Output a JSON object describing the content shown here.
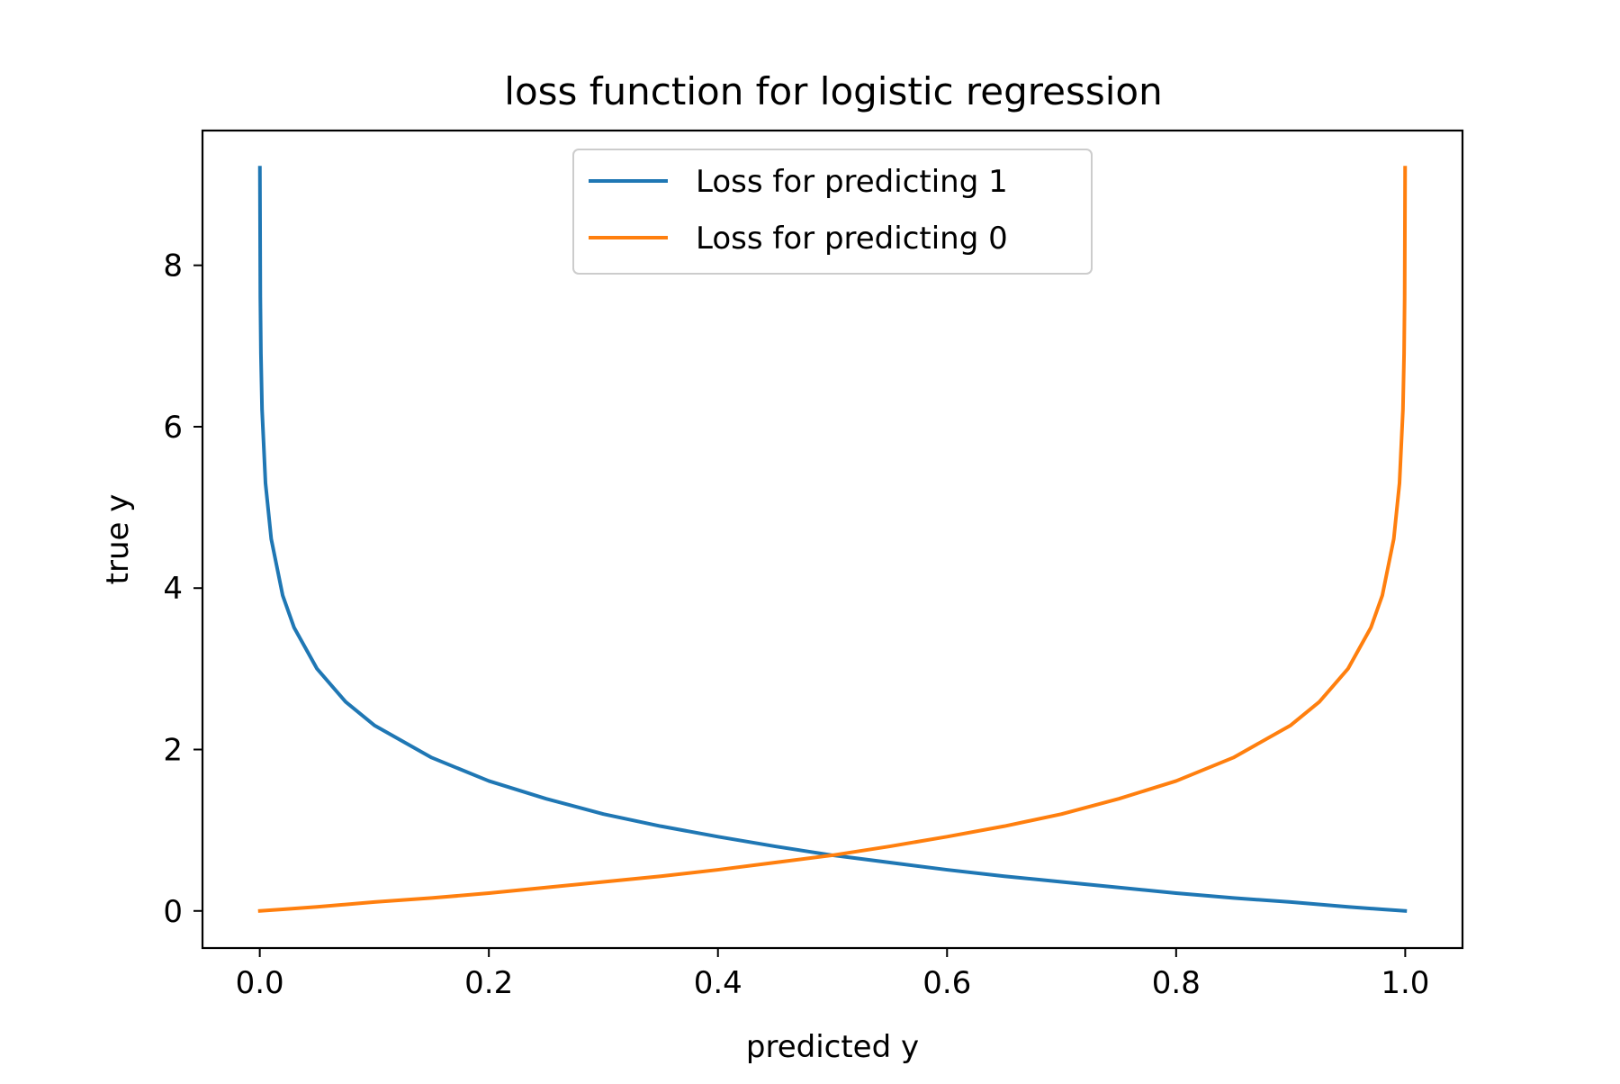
{
  "chart_data": {
    "type": "line",
    "title": "loss function for logistic regression",
    "xlabel": "predicted y",
    "ylabel": "true y",
    "xlim": [
      -0.05,
      1.05
    ],
    "ylim": [
      -0.46,
      9.67
    ],
    "x_ticks": [
      {
        "value": 0.0,
        "label": "0.0"
      },
      {
        "value": 0.2,
        "label": "0.2"
      },
      {
        "value": 0.4,
        "label": "0.4"
      },
      {
        "value": 0.6,
        "label": "0.6"
      },
      {
        "value": 0.8,
        "label": "0.8"
      },
      {
        "value": 1.0,
        "label": "1.0"
      }
    ],
    "y_ticks": [
      {
        "value": 0,
        "label": "0"
      },
      {
        "value": 2,
        "label": "2"
      },
      {
        "value": 4,
        "label": "4"
      },
      {
        "value": 6,
        "label": "6"
      },
      {
        "value": 8,
        "label": "8"
      }
    ],
    "grid": false,
    "legend": {
      "position": "top-center"
    },
    "series": [
      {
        "name": "Loss for predicting 1",
        "color": "#1f77b4",
        "x": [
          0.0001,
          0.0005,
          0.001,
          0.002,
          0.005,
          0.01,
          0.02,
          0.03,
          0.05,
          0.075,
          0.1,
          0.15,
          0.2,
          0.25,
          0.3,
          0.35,
          0.4,
          0.45,
          0.5,
          0.55,
          0.6,
          0.65,
          0.7,
          0.75,
          0.8,
          0.85,
          0.9,
          0.95,
          0.98,
          0.9999
        ],
        "y": [
          9.21,
          7.6,
          6.91,
          6.21,
          5.3,
          4.61,
          3.91,
          3.51,
          3.0,
          2.59,
          2.3,
          1.9,
          1.61,
          1.39,
          1.2,
          1.05,
          0.92,
          0.8,
          0.69,
          0.6,
          0.51,
          0.43,
          0.36,
          0.29,
          0.22,
          0.16,
          0.11,
          0.05,
          0.02,
          0.0
        ]
      },
      {
        "name": "Loss for predicting 0",
        "color": "#ff7f0e",
        "x": [
          0.0001,
          0.02,
          0.05,
          0.1,
          0.15,
          0.2,
          0.25,
          0.3,
          0.35,
          0.4,
          0.45,
          0.5,
          0.55,
          0.6,
          0.65,
          0.7,
          0.75,
          0.8,
          0.85,
          0.9,
          0.925,
          0.95,
          0.97,
          0.98,
          0.99,
          0.995,
          0.998,
          0.999,
          0.9995,
          0.9999
        ],
        "y": [
          0.0,
          0.02,
          0.05,
          0.11,
          0.16,
          0.22,
          0.29,
          0.36,
          0.43,
          0.51,
          0.6,
          0.69,
          0.8,
          0.92,
          1.05,
          1.2,
          1.39,
          1.61,
          1.9,
          2.3,
          2.59,
          3.0,
          3.51,
          3.91,
          4.61,
          5.3,
          6.21,
          6.91,
          7.6,
          9.21
        ]
      }
    ]
  }
}
